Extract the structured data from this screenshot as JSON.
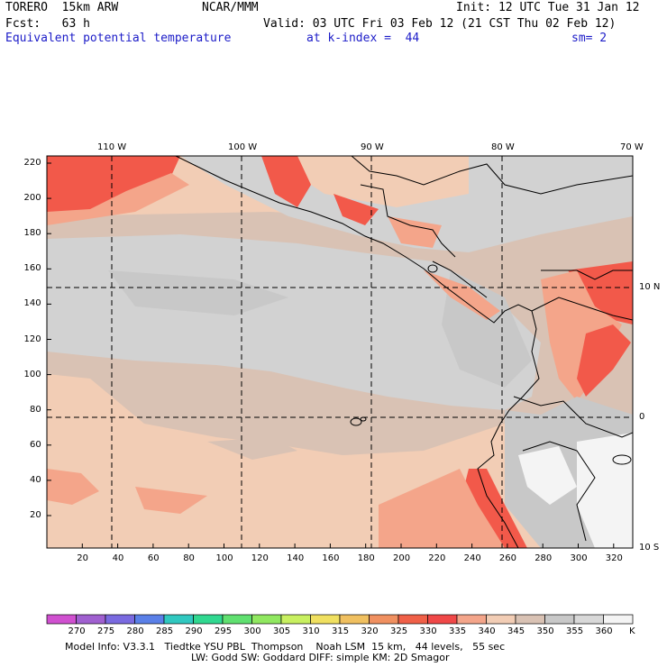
{
  "header": {
    "model": "TORERO  15km ARW",
    "center": "NCAR/MMM",
    "init": "Init: 12 UTC Tue 31 Jan 12",
    "fcst": "Fcst:   63 h",
    "valid": "Valid: 03 UTC Fri 03 Feb 12 (21 CST Thu 02 Feb 12)",
    "field": "Equivalent potential temperature",
    "level": "at k-index =  44",
    "smooth": "sm= 2"
  },
  "map": {
    "top_lon_labels": [
      "110 W",
      "100 W",
      "90 W",
      "80 W",
      "70 W"
    ],
    "right_lat_labels": [
      "10 N",
      "0",
      "10 S"
    ],
    "x_ticks": [
      "20",
      "40",
      "60",
      "80",
      "100",
      "120",
      "140",
      "160",
      "180",
      "200",
      "220",
      "240",
      "260",
      "280",
      "300",
      "320"
    ],
    "y_ticks": [
      "220",
      "200",
      "180",
      "160",
      "140",
      "120",
      "100",
      "80",
      "60",
      "40",
      "20"
    ],
    "colors": {
      "grey_light": "#d2d2d2",
      "grey_mid": "#c8c8c8",
      "tan": "#d9c2b4",
      "peach": "#f2cdb5",
      "salmon": "#f4a58a",
      "red": "#f2594a",
      "white": "#f4f4f4"
    }
  },
  "legend": {
    "labels": [
      "270",
      "275",
      "280",
      "285",
      "290",
      "295",
      "300",
      "305",
      "310",
      "315",
      "320",
      "325",
      "330",
      "335",
      "340",
      "345",
      "350",
      "355",
      "360"
    ],
    "unit": "K",
    "colors": [
      "#d050d0",
      "#a060d0",
      "#7a6ae0",
      "#5a80e8",
      "#30c8c0",
      "#30d890",
      "#60e070",
      "#90e860",
      "#c8f060",
      "#f0e060",
      "#f0c060",
      "#f09060",
      "#f06048",
      "#f04848",
      "#f4a58a",
      "#f2cdb5",
      "#d9c2b4",
      "#c8c8c8",
      "#d8d8d8",
      "#f4f4f4"
    ]
  },
  "footer": {
    "line1": "Model Info: V3.3.1   Tiedtke YSU PBL  Thompson    Noah LSM  15 km,   44 levels,   55 sec",
    "line2": "LW: Godd SW: Goddard DIFF: simple KM: 2D Smagor"
  }
}
